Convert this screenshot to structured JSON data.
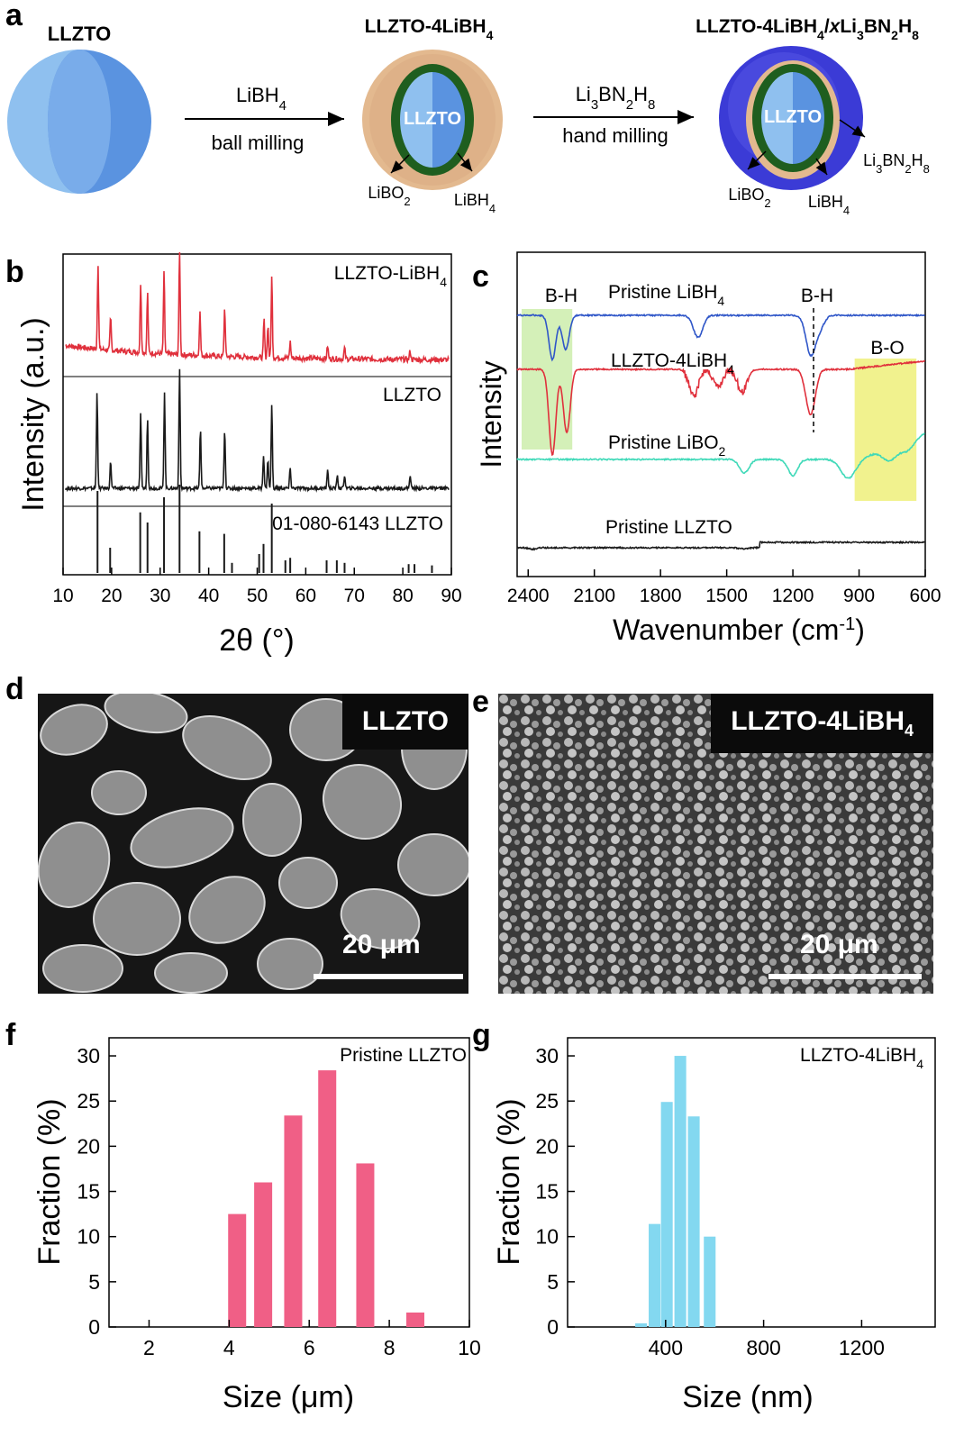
{
  "panel_letters": {
    "a": "a",
    "b": "b",
    "c": "c",
    "d": "d",
    "e": "e",
    "f": "f",
    "g": "g"
  },
  "scheme": {
    "llzto_title": "LLZTO",
    "mid_title_main": "LLZTO-4LiBH",
    "mid_title_sub": "4",
    "right_title": {
      "p1": "LLZTO-4LiBH",
      "s1": "4",
      "p2": "/",
      "p3": "x",
      "p4": "Li",
      "s2": "3",
      "p5": "BN",
      "s3": "2",
      "p6": "H",
      "s4": "8"
    },
    "arrow1_top": {
      "main": "LiBH",
      "sub": "4"
    },
    "arrow1_bottom": "ball milling",
    "arrow2_top": {
      "p1": "Li",
      "s1": "3",
      "p2": "BN",
      "s2": "2",
      "p3": "H",
      "s3": "8"
    },
    "arrow2_bottom": "hand milling",
    "core_label": "LLZTO",
    "mid_libo2": {
      "main": "LiBO",
      "sub": "2"
    },
    "mid_libh4": {
      "main": "LiBH",
      "sub": "4"
    },
    "right_libo2": {
      "main": "LiBO",
      "sub": "2"
    },
    "right_libh4": {
      "main": "LiBH",
      "sub": "4"
    },
    "right_shell": {
      "p1": "Li",
      "s1": "3",
      "p2": "BN",
      "s2": "2",
      "p3": "H",
      "s3": "8"
    },
    "colors": {
      "llzto_light": "#8fc0ef",
      "llzto_dark": "#5a93e0",
      "libo2": "#1f5e1f",
      "libh4": "#e3b98f",
      "shell": "#3b3bd6"
    }
  },
  "chart_data": [
    {
      "id": "b",
      "type": "line",
      "xlabel": "2θ (°)",
      "ylabel": "Intensity (a.u.)",
      "xlim": [
        10,
        90
      ],
      "xticks": [
        10,
        20,
        30,
        40,
        50,
        60,
        70,
        80,
        90
      ],
      "series": [
        {
          "name": "LLZTO-LiBH",
          "name_sub": "4",
          "color": "#e0303c",
          "peaks": [
            [
              17.2,
              0.8
            ],
            [
              19.8,
              0.3
            ],
            [
              26.0,
              0.65
            ],
            [
              27.4,
              0.55
            ],
            [
              30.8,
              0.75
            ],
            [
              34.0,
              0.95
            ],
            [
              38.2,
              0.4
            ],
            [
              43.3,
              0.45
            ],
            [
              51.4,
              0.35
            ],
            [
              52.2,
              0.3
            ],
            [
              53.0,
              0.75
            ],
            [
              56.8,
              0.15
            ],
            [
              64.5,
              0.12
            ],
            [
              68.0,
              0.1
            ],
            [
              81.5,
              0.08
            ]
          ]
        },
        {
          "name": "LLZTO",
          "color": "#1a1a1a",
          "peaks": [
            [
              17.0,
              0.72
            ],
            [
              19.8,
              0.2
            ],
            [
              26.0,
              0.55
            ],
            [
              27.4,
              0.52
            ],
            [
              30.9,
              0.72
            ],
            [
              34.0,
              0.88
            ],
            [
              38.3,
              0.44
            ],
            [
              43.3,
              0.44
            ],
            [
              51.3,
              0.25
            ],
            [
              52.2,
              0.22
            ],
            [
              53.0,
              0.62
            ],
            [
              56.8,
              0.15
            ],
            [
              64.5,
              0.14
            ],
            [
              66.5,
              0.1
            ],
            [
              68.0,
              0.1
            ],
            [
              81.5,
              0.1
            ]
          ]
        },
        {
          "name": "01-080-6143 LLZTO",
          "color": "#1a1a1a",
          "sticks": [
            [
              17.1,
              0.65
            ],
            [
              19.7,
              0.2
            ],
            [
              25.9,
              0.48
            ],
            [
              27.4,
              0.4
            ],
            [
              30.8,
              0.6
            ],
            [
              34.0,
              0.7
            ],
            [
              38.1,
              0.33
            ],
            [
              43.2,
              0.31
            ],
            [
              44.8,
              0.08
            ],
            [
              50.4,
              0.15
            ],
            [
              51.3,
              0.23
            ],
            [
              53.0,
              0.55
            ],
            [
              55.8,
              0.1
            ],
            [
              56.8,
              0.12
            ],
            [
              64.3,
              0.1
            ],
            [
              66.4,
              0.1
            ],
            [
              68.0,
              0.08
            ],
            [
              81.2,
              0.07
            ],
            [
              82.4,
              0.07
            ],
            [
              86.0,
              0.06
            ]
          ]
        }
      ]
    },
    {
      "id": "c",
      "type": "line",
      "xlabel": "Wavenumber (cm",
      "xlabel_sup": "-1",
      "xlabel_close": ")",
      "ylabel": "Intensity",
      "xlim": [
        2450,
        600
      ],
      "xticks": [
        2400,
        2100,
        1800,
        1500,
        1200,
        900,
        600
      ],
      "annotations": {
        "bh_left": "B-H",
        "bh_right": "B-H",
        "bo": "B-O"
      },
      "highlight_green": [
        2450,
        2200
      ],
      "highlight_yellow": [
        920,
        640
      ],
      "series": [
        {
          "name": "Pristine LiBH",
          "name_sub": "4",
          "color": "#2f56c8",
          "dips": [
            [
              2290,
              0.7
            ],
            [
              2230,
              0.55
            ],
            [
              1630,
              0.35
            ],
            [
              1120,
              0.6
            ],
            [
              1080,
              0.2
            ]
          ]
        },
        {
          "name": "LLZTO-4LiBH",
          "name_sub": "4",
          "color": "#e0303c",
          "dips": [
            [
              2290,
              0.95
            ],
            [
              2225,
              0.7
            ],
            [
              1650,
              0.3
            ],
            [
              1540,
              0.2
            ],
            [
              1430,
              0.25
            ],
            [
              1120,
              0.5
            ]
          ]
        },
        {
          "name": "Pristine LiBO",
          "name_sub": "2",
          "color": "#3fd9b8",
          "dips": [
            [
              1420,
              0.25
            ],
            [
              1200,
              0.3
            ],
            [
              950,
              0.35
            ],
            [
              760,
              0.25
            ],
            [
              680,
              0.2
            ]
          ]
        },
        {
          "name": "Pristine LLZTO",
          "color": "#1a1a1a",
          "dips": [
            [
              2380,
              0.08
            ],
            [
              1420,
              0.06
            ]
          ]
        }
      ]
    },
    {
      "id": "f",
      "type": "bar",
      "xlabel": "Size (μm)",
      "ylabel": "Fraction (%)",
      "legend": "Pristine LLZTO",
      "xlim": [
        1,
        10
      ],
      "ylim": [
        0,
        32
      ],
      "xticks": [
        2,
        4,
        6,
        8,
        10
      ],
      "yticks": [
        0,
        5,
        10,
        15,
        20,
        25,
        30
      ],
      "bar_width": 0.45,
      "color": "#f05f86",
      "x": [
        4.2,
        4.85,
        5.6,
        6.45,
        7.4,
        8.65
      ],
      "values": [
        12.5,
        16.0,
        23.4,
        28.4,
        18.1,
        1.6
      ]
    },
    {
      "id": "g",
      "type": "bar",
      "xlabel": "Size (nm)",
      "ylabel": "Fraction (%)",
      "legend": "LLZTO-4LiBH",
      "legend_sub": "4",
      "xlim": [
        0,
        1500
      ],
      "ylim": [
        0,
        32
      ],
      "xticks": [
        400,
        800,
        1200
      ],
      "yticks": [
        0,
        5,
        10,
        15,
        20,
        25,
        30
      ],
      "bar_width": 48,
      "color": "#83d8f0",
      "x": [
        300,
        355,
        405,
        460,
        515,
        580
      ],
      "values": [
        0.4,
        11.4,
        24.9,
        30.0,
        23.3,
        10.0
      ]
    }
  ],
  "sem": {
    "d": {
      "tag": "LLZTO",
      "scale": "20 μm"
    },
    "e": {
      "tag": "LLZTO-4LiBH",
      "tag_sub": "4",
      "scale": "20 μm"
    }
  }
}
